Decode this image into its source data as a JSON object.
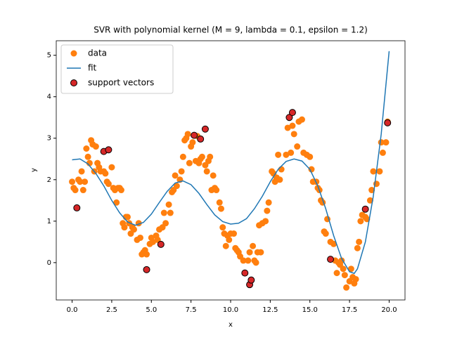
{
  "chart_data": {
    "type": "scatter",
    "title": "SVR with polynomial kernel (M = 9, lambda = 0.1, epsilon = 1.2)",
    "xlabel": "x",
    "ylabel": "y",
    "xlim": [
      -1,
      21
    ],
    "ylim": [
      -0.9,
      5.35
    ],
    "xticks": [
      {
        "value": 0,
        "label": "0.0"
      },
      {
        "value": 2.5,
        "label": "2.5"
      },
      {
        "value": 5,
        "label": "5.0"
      },
      {
        "value": 7.5,
        "label": "7.5"
      },
      {
        "value": 10,
        "label": "10.0"
      },
      {
        "value": 12.5,
        "label": "12.5"
      },
      {
        "value": 15,
        "label": "15.0"
      },
      {
        "value": 17.5,
        "label": "17.5"
      },
      {
        "value": 20,
        "label": "20.0"
      }
    ],
    "yticks": [
      0,
      1,
      2,
      3,
      4,
      5
    ],
    "legend": "upper left",
    "series": [
      {
        "name": "data",
        "type": "scatter",
        "color": "#ff7f0e",
        "x": [
          0.0,
          0.1,
          0.2,
          0.4,
          0.5,
          0.6,
          0.7,
          0.8,
          0.9,
          1.0,
          1.1,
          1.2,
          1.3,
          1.4,
          1.5,
          1.6,
          1.7,
          1.8,
          2.0,
          2.1,
          2.2,
          2.3,
          2.5,
          2.6,
          2.7,
          2.8,
          2.9,
          3.0,
          3.1,
          3.2,
          3.3,
          3.4,
          3.5,
          3.6,
          3.7,
          3.8,
          3.9,
          4.1,
          4.2,
          4.3,
          4.4,
          4.5,
          4.6,
          4.7,
          4.9,
          5.0,
          5.1,
          5.3,
          5.4,
          5.5,
          5.7,
          5.8,
          5.9,
          6.1,
          6.2,
          6.3,
          6.4,
          6.5,
          6.6,
          6.8,
          6.9,
          7.0,
          7.1,
          7.2,
          7.3,
          7.4,
          7.5,
          7.6,
          7.8,
          7.9,
          8.0,
          8.1,
          8.2,
          8.4,
          8.5,
          8.6,
          8.7,
          8.8,
          8.9,
          9.0,
          9.1,
          9.3,
          9.4,
          9.5,
          9.6,
          9.7,
          9.8,
          9.9,
          10.0,
          10.2,
          10.3,
          10.4,
          10.5,
          10.6,
          10.8,
          11.1,
          11.2,
          11.4,
          11.5,
          11.6,
          11.7,
          11.8,
          11.9,
          12.0,
          12.2,
          12.3,
          12.4,
          12.6,
          12.7,
          12.8,
          12.9,
          13.0,
          13.1,
          13.2,
          13.5,
          13.6,
          13.8,
          13.9,
          14.0,
          14.2,
          14.3,
          14.5,
          14.6,
          14.8,
          15.0,
          15.1,
          15.2,
          15.4,
          15.5,
          15.6,
          15.7,
          15.8,
          15.9,
          16.0,
          16.1,
          16.3,
          16.5,
          16.6,
          16.7,
          16.8,
          16.9,
          17.0,
          17.1,
          17.2,
          17.3,
          17.5,
          17.6,
          17.7,
          17.8,
          17.9,
          18.0,
          18.1,
          18.2,
          18.3,
          18.5,
          18.6,
          18.8,
          18.9,
          19.0,
          19.2,
          19.4,
          19.5,
          19.6,
          19.8,
          19.9
        ],
        "values": [
          1.95,
          1.8,
          1.75,
          2.0,
          1.95,
          2.2,
          1.75,
          1.95,
          2.75,
          2.55,
          2.4,
          2.95,
          2.85,
          2.2,
          2.8,
          2.4,
          2.3,
          2.2,
          2.2,
          2.15,
          1.95,
          1.9,
          2.3,
          1.8,
          1.75,
          1.45,
          1.8,
          1.8,
          1.75,
          0.95,
          0.85,
          1.1,
          1.1,
          0.95,
          0.7,
          0.85,
          0.8,
          0.55,
          0.95,
          0.6,
          0.2,
          0.25,
          0.3,
          0.2,
          0.45,
          0.6,
          0.5,
          0.65,
          0.55,
          0.8,
          0.85,
          1.2,
          0.95,
          1.4,
          1.2,
          1.7,
          1.75,
          2.1,
          1.85,
          2.0,
          2.2,
          2.55,
          2.95,
          3.0,
          3.1,
          2.4,
          2.8,
          2.9,
          2.45,
          3.05,
          2.4,
          2.5,
          2.55,
          2.35,
          2.2,
          2.45,
          2.55,
          1.75,
          2.1,
          1.8,
          1.75,
          1.45,
          1.3,
          0.85,
          0.7,
          0.4,
          0.65,
          0.55,
          0.7,
          0.7,
          0.35,
          0.3,
          0.25,
          0.15,
          0.05,
          0.05,
          0.25,
          0.4,
          0.05,
          0.0,
          0.25,
          0.9,
          0.25,
          0.95,
          1.0,
          1.25,
          1.45,
          2.2,
          2.15,
          1.95,
          2.05,
          2.6,
          2.0,
          2.25,
          2.6,
          3.25,
          2.65,
          3.3,
          3.1,
          2.8,
          3.4,
          3.45,
          2.65,
          2.6,
          2.55,
          2.25,
          1.95,
          1.95,
          1.8,
          1.75,
          1.5,
          1.45,
          0.75,
          0.7,
          1.05,
          0.5,
          0.45,
          0.05,
          -0.25,
          0.0,
          -0.05,
          0.05,
          -0.15,
          -0.3,
          -0.6,
          -0.45,
          -0.15,
          -0.35,
          -0.5,
          -0.4,
          0.35,
          0.5,
          1.0,
          1.15,
          1.1,
          1.05,
          1.5,
          1.75,
          2.2,
          1.9,
          2.2,
          2.9,
          2.65,
          2.9,
          3.4
        ]
      },
      {
        "name": "fit",
        "type": "line",
        "color": "#1f77b4",
        "x": [
          0,
          0.5,
          1,
          1.5,
          2,
          2.5,
          3,
          3.5,
          4,
          4.5,
          5,
          5.5,
          6,
          6.5,
          7,
          7.5,
          8,
          8.5,
          9,
          9.5,
          10,
          10.5,
          11,
          11.5,
          12,
          12.5,
          13,
          13.5,
          14,
          14.5,
          15,
          15.5,
          16,
          16.5,
          17,
          17.5,
          17.8,
          18,
          18.5,
          19,
          19.5,
          20
        ],
        "values": [
          2.48,
          2.5,
          2.38,
          2.15,
          1.85,
          1.5,
          1.2,
          0.98,
          0.9,
          0.97,
          1.17,
          1.45,
          1.72,
          1.92,
          1.97,
          1.88,
          1.67,
          1.4,
          1.15,
          0.99,
          0.93,
          0.95,
          1.06,
          1.3,
          1.6,
          1.95,
          2.25,
          2.44,
          2.5,
          2.45,
          2.25,
          1.85,
          1.3,
          0.65,
          0.1,
          -0.22,
          -0.26,
          -0.15,
          0.5,
          1.6,
          3.1,
          5.1
        ]
      },
      {
        "name": "support vectors",
        "type": "scatter",
        "color": "#d62728",
        "edgecolor": "#000000",
        "x": [
          0.3,
          2.0,
          2.3,
          4.7,
          5.6,
          7.7,
          8.1,
          8.4,
          10.9,
          11.2,
          11.3,
          13.7,
          13.9,
          16.3,
          18.5,
          19.9
        ],
        "values": [
          1.32,
          2.68,
          2.72,
          -0.17,
          0.44,
          3.07,
          2.98,
          3.22,
          -0.25,
          -0.53,
          -0.42,
          3.5,
          3.62,
          0.08,
          1.29,
          3.37
        ]
      }
    ]
  }
}
